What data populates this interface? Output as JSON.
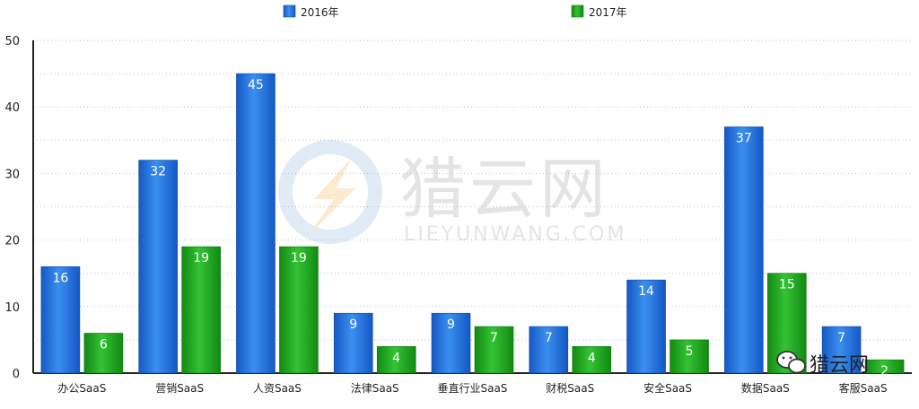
{
  "chart_data": {
    "type": "bar",
    "categories": [
      "办公SaaS",
      "营销SaaS",
      "人资SaaS",
      "法律SaaS",
      "垂直行业SaaS",
      "财税SaaS",
      "安全SaaS",
      "数据SaaS",
      "客服SaaS"
    ],
    "series": [
      {
        "name": "2016年",
        "color": "#1e6fd9",
        "values": [
          16,
          32,
          45,
          9,
          9,
          7,
          14,
          37,
          7
        ]
      },
      {
        "name": "2017年",
        "color": "#1aa01a",
        "values": [
          6,
          19,
          19,
          4,
          7,
          4,
          5,
          15,
          2
        ]
      }
    ],
    "yticks": [
      0,
      10,
      20,
      30,
      40,
      50
    ],
    "ylim": [
      0,
      50
    ],
    "grid": true,
    "legend_position": "top",
    "data_labels": true
  },
  "watermark": {
    "logo_text": "猎云网",
    "logo_subtext": "LIEYUNWANG.COM",
    "corner_text": "猎云网",
    "corner_icon": "wechat-icon"
  }
}
